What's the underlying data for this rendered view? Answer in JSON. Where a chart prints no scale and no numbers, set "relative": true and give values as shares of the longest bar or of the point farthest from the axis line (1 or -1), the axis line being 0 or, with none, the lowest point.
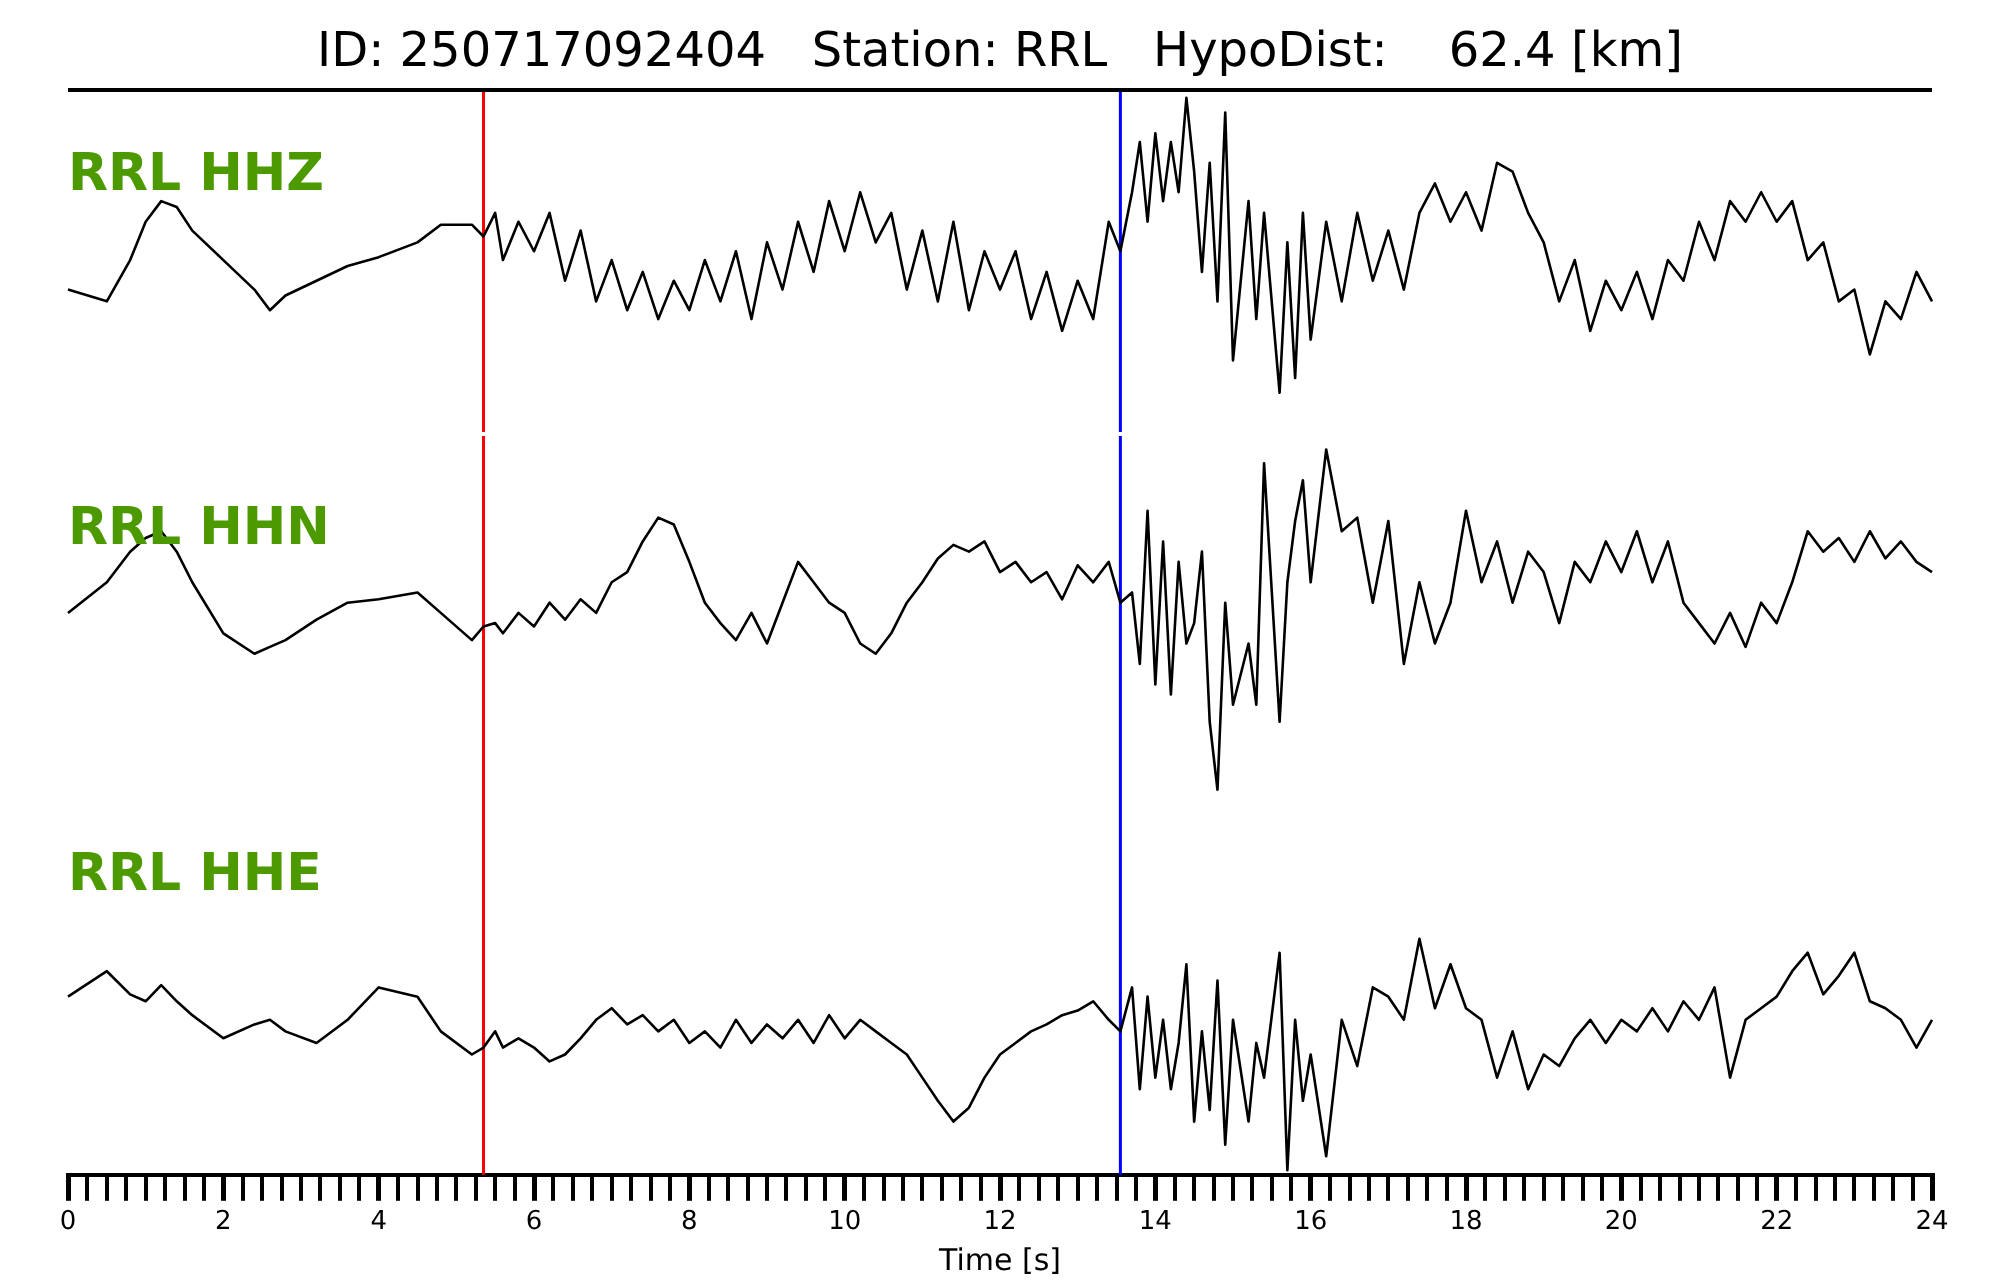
{
  "chart_data": [
    {
      "type": "line",
      "title": "ID: 250717092404   Station: RRL   HypoDist:    62.4 [km]",
      "relative": true,
      "grid": false,
      "tick_labels": false,
      "marker": "none",
      "line_style": "solid",
      "xlim": [
        0,
        24
      ],
      "x": [
        0,
        0.5,
        0.8,
        1.0,
        1.2,
        1.4,
        1.6,
        2.0,
        2.4,
        2.6,
        2.8,
        3.2,
        3.6,
        4.0,
        4.5,
        4.8,
        5.2,
        5.35,
        5.5,
        5.6,
        5.8,
        6.0,
        6.2,
        6.4,
        6.6,
        6.8,
        7.0,
        7.2,
        7.4,
        7.6,
        7.8,
        8.0,
        8.2,
        8.4,
        8.6,
        8.8,
        9.0,
        9.2,
        9.4,
        9.6,
        9.8,
        10.0,
        10.2,
        10.4,
        10.6,
        10.8,
        11.0,
        11.2,
        11.4,
        11.6,
        11.8,
        12.0,
        12.2,
        12.4,
        12.6,
        12.8,
        13.0,
        13.2,
        13.4,
        13.55,
        13.7,
        13.8,
        13.9,
        14.0,
        14.1,
        14.2,
        14.3,
        14.4,
        14.5,
        14.6,
        14.7,
        14.8,
        14.9,
        15.0,
        15.2,
        15.3,
        15.4,
        15.6,
        15.7,
        15.8,
        15.9,
        16.0,
        16.2,
        16.4,
        16.6,
        16.8,
        17.0,
        17.2,
        17.4,
        17.6,
        17.8,
        18.0,
        18.2,
        18.4,
        18.6,
        18.8,
        19.0,
        19.2,
        19.4,
        19.6,
        19.8,
        20.0,
        20.2,
        20.4,
        20.6,
        20.8,
        21.0,
        21.2,
        21.4,
        21.6,
        21.8,
        22.0,
        22.2,
        22.4,
        22.6,
        22.8,
        23.0,
        23.2,
        23.4,
        23.6,
        23.8,
        24.0
      ],
      "series": [
        {
          "name": "RRL HHZ",
          "color": "#000000",
          "values": [
            0.35,
            0.31,
            0.45,
            0.58,
            0.65,
            0.63,
            0.55,
            0.45,
            0.35,
            0.28,
            0.33,
            0.38,
            0.43,
            0.46,
            0.51,
            0.57,
            0.57,
            0.53,
            0.61,
            0.45,
            0.58,
            0.48,
            0.61,
            0.38,
            0.55,
            0.31,
            0.45,
            0.28,
            0.41,
            0.25,
            0.38,
            0.28,
            0.45,
            0.31,
            0.48,
            0.25,
            0.51,
            0.35,
            0.58,
            0.41,
            0.65,
            0.48,
            0.68,
            0.51,
            0.61,
            0.35,
            0.55,
            0.31,
            0.58,
            0.28,
            0.48,
            0.35,
            0.48,
            0.25,
            0.41,
            0.21,
            0.38,
            0.25,
            0.58,
            0.48,
            0.68,
            0.85,
            0.58,
            0.88,
            0.65,
            0.85,
            0.68,
            1,
            0.75,
            0.41,
            0.78,
            0.31,
            0.95,
            0.11,
            0.65,
            0.25,
            0.61,
            0,
            0.51,
            0.05,
            0.61,
            0.18,
            0.58,
            0.31,
            0.61,
            0.38,
            0.55,
            0.35,
            0.61,
            0.71,
            0.58,
            0.68,
            0.55,
            0.78,
            0.75,
            0.61,
            0.51,
            0.31,
            0.45,
            0.21,
            0.38,
            0.28,
            0.41,
            0.25,
            0.45,
            0.38,
            0.58,
            0.45,
            0.65,
            0.58,
            0.68,
            0.58,
            0.65,
            0.45,
            0.51,
            0.31,
            0.35,
            0.13,
            0.31,
            0.25,
            0.41,
            0.31
          ]
        }
      ],
      "ref_lines": [
        {
          "axis": "x",
          "value": 5.35,
          "color": "#ff0000"
        },
        {
          "axis": "x",
          "value": 13.55,
          "color": "#0000ff"
        }
      ]
    },
    {
      "type": "line",
      "relative": true,
      "grid": false,
      "tick_labels": false,
      "marker": "none",
      "line_style": "solid",
      "xlim": [
        0,
        24
      ],
      "x": [
        0,
        0.5,
        0.8,
        1.0,
        1.2,
        1.4,
        1.6,
        2.0,
        2.4,
        2.6,
        2.8,
        3.2,
        3.6,
        4.0,
        4.5,
        4.8,
        5.2,
        5.35,
        5.5,
        5.6,
        5.8,
        6.0,
        6.2,
        6.4,
        6.6,
        6.8,
        7.0,
        7.2,
        7.4,
        7.6,
        7.8,
        8.0,
        8.2,
        8.4,
        8.6,
        8.8,
        9.0,
        9.2,
        9.4,
        9.6,
        9.8,
        10.0,
        10.2,
        10.4,
        10.6,
        10.8,
        11.0,
        11.2,
        11.4,
        11.6,
        11.8,
        12.0,
        12.2,
        12.4,
        12.6,
        12.8,
        13.0,
        13.2,
        13.4,
        13.55,
        13.7,
        13.8,
        13.9,
        14.0,
        14.1,
        14.2,
        14.3,
        14.4,
        14.5,
        14.6,
        14.7,
        14.8,
        14.9,
        15.0,
        15.2,
        15.3,
        15.4,
        15.6,
        15.7,
        15.8,
        15.9,
        16.0,
        16.2,
        16.4,
        16.6,
        16.8,
        17.0,
        17.2,
        17.4,
        17.6,
        17.8,
        18.0,
        18.2,
        18.4,
        18.6,
        18.8,
        19.0,
        19.2,
        19.4,
        19.6,
        19.8,
        20.0,
        20.2,
        20.4,
        20.6,
        20.8,
        21.0,
        21.2,
        21.4,
        21.6,
        21.8,
        22.0,
        22.2,
        22.4,
        22.6,
        22.8,
        23.0,
        23.2,
        23.4,
        23.6,
        23.8,
        24.0
      ],
      "series": [
        {
          "name": "RRL HHN",
          "color": "#000000",
          "values": [
            0.52,
            0.61,
            0.7,
            0.74,
            0.76,
            0.7,
            0.61,
            0.46,
            0.4,
            0.42,
            0.44,
            0.5,
            0.55,
            0.56,
            0.58,
            0.52,
            0.44,
            0.48,
            0.49,
            0.46,
            0.52,
            0.48,
            0.55,
            0.5,
            0.56,
            0.52,
            0.61,
            0.64,
            0.73,
            0.8,
            0.78,
            0.67,
            0.55,
            0.49,
            0.44,
            0.52,
            0.43,
            0.55,
            0.67,
            0.61,
            0.55,
            0.52,
            0.43,
            0.4,
            0.46,
            0.55,
            0.61,
            0.68,
            0.72,
            0.7,
            0.73,
            0.64,
            0.67,
            0.61,
            0.64,
            0.56,
            0.66,
            0.61,
            0.67,
            0.55,
            0.58,
            0.37,
            0.82,
            0.31,
            0.73,
            0.28,
            0.67,
            0.43,
            0.49,
            0.7,
            0.2,
            0,
            0.55,
            0.25,
            0.43,
            0.25,
            0.96,
            0.2,
            0.61,
            0.79,
            0.91,
            0.61,
            1,
            0.76,
            0.8,
            0.55,
            0.79,
            0.37,
            0.61,
            0.43,
            0.55,
            0.82,
            0.61,
            0.73,
            0.55,
            0.7,
            0.64,
            0.49,
            0.67,
            0.61,
            0.73,
            0.64,
            0.76,
            0.61,
            0.73,
            0.55,
            0.49,
            0.43,
            0.52,
            0.42,
            0.55,
            0.49,
            0.61,
            0.76,
            0.7,
            0.74,
            0.67,
            0.76,
            0.68,
            0.73,
            0.67,
            0.64
          ]
        }
      ],
      "ref_lines": [
        {
          "axis": "x",
          "value": 5.35,
          "color": "#ff0000"
        },
        {
          "axis": "x",
          "value": 13.55,
          "color": "#0000ff"
        }
      ]
    },
    {
      "type": "line",
      "relative": true,
      "grid": false,
      "tick_labels": "x",
      "marker": "none",
      "line_style": "solid",
      "xlabel": "Time [s]",
      "xlim": [
        0,
        24
      ],
      "xticks": [
        0,
        {
          "value": 0.25,
          "label": null
        },
        {
          "value": 0.5,
          "label": null
        },
        {
          "value": 0.75,
          "label": null
        },
        {
          "value": 1,
          "label": null
        },
        {
          "value": 1.25,
          "label": null
        },
        {
          "value": 1.5,
          "label": null
        },
        {
          "value": 1.75,
          "label": null
        },
        2,
        {
          "value": 2.25,
          "label": null
        },
        {
          "value": 2.5,
          "label": null
        },
        {
          "value": 2.75,
          "label": null
        },
        {
          "value": 3,
          "label": null
        },
        {
          "value": 3.25,
          "label": null
        },
        {
          "value": 3.5,
          "label": null
        },
        {
          "value": 3.75,
          "label": null
        },
        4,
        {
          "value": 4.25,
          "label": null
        },
        {
          "value": 4.5,
          "label": null
        },
        {
          "value": 4.75,
          "label": null
        },
        {
          "value": 5,
          "label": null
        },
        {
          "value": 5.25,
          "label": null
        },
        {
          "value": 5.5,
          "label": null
        },
        {
          "value": 5.75,
          "label": null
        },
        6,
        {
          "value": 6.25,
          "label": null
        },
        {
          "value": 6.5,
          "label": null
        },
        {
          "value": 6.75,
          "label": null
        },
        {
          "value": 7,
          "label": null
        },
        {
          "value": 7.25,
          "label": null
        },
        {
          "value": 7.5,
          "label": null
        },
        {
          "value": 7.75,
          "label": null
        },
        8,
        {
          "value": 8.25,
          "label": null
        },
        {
          "value": 8.5,
          "label": null
        },
        {
          "value": 8.75,
          "label": null
        },
        {
          "value": 9,
          "label": null
        },
        {
          "value": 9.25,
          "label": null
        },
        {
          "value": 9.5,
          "label": null
        },
        {
          "value": 9.75,
          "label": null
        },
        10,
        {
          "value": 10.25,
          "label": null
        },
        {
          "value": 10.5,
          "label": null
        },
        {
          "value": 10.75,
          "label": null
        },
        {
          "value": 11,
          "label": null
        },
        {
          "value": 11.25,
          "label": null
        },
        {
          "value": 11.5,
          "label": null
        },
        {
          "value": 11.75,
          "label": null
        },
        12,
        {
          "value": 12.25,
          "label": null
        },
        {
          "value": 12.5,
          "label": null
        },
        {
          "value": 12.75,
          "label": null
        },
        {
          "value": 13,
          "label": null
        },
        {
          "value": 13.25,
          "label": null
        },
        {
          "value": 13.5,
          "label": null
        },
        {
          "value": 13.75,
          "label": null
        },
        14,
        {
          "value": 14.25,
          "label": null
        },
        {
          "value": 14.5,
          "label": null
        },
        {
          "value": 14.75,
          "label": null
        },
        {
          "value": 15,
          "label": null
        },
        {
          "value": 15.25,
          "label": null
        },
        {
          "value": 15.5,
          "label": null
        },
        {
          "value": 15.75,
          "label": null
        },
        16,
        {
          "value": 16.25,
          "label": null
        },
        {
          "value": 16.5,
          "label": null
        },
        {
          "value": 16.75,
          "label": null
        },
        {
          "value": 17,
          "label": null
        },
        {
          "value": 17.25,
          "label": null
        },
        {
          "value": 17.5,
          "label": null
        },
        {
          "value": 17.75,
          "label": null
        },
        18,
        {
          "value": 18.25,
          "label": null
        },
        {
          "value": 18.5,
          "label": null
        },
        {
          "value": 18.75,
          "label": null
        },
        {
          "value": 19,
          "label": null
        },
        {
          "value": 19.25,
          "label": null
        },
        {
          "value": 19.5,
          "label": null
        },
        {
          "value": 19.75,
          "label": null
        },
        20,
        {
          "value": 20.25,
          "label": null
        },
        {
          "value": 20.5,
          "label": null
        },
        {
          "value": 20.75,
          "label": null
        },
        {
          "value": 21,
          "label": null
        },
        {
          "value": 21.25,
          "label": null
        },
        {
          "value": 21.5,
          "label": null
        },
        {
          "value": 21.75,
          "label": null
        },
        22,
        {
          "value": 22.25,
          "label": null
        },
        {
          "value": 22.5,
          "label": null
        },
        {
          "value": 22.75,
          "label": null
        },
        {
          "value": 23,
          "label": null
        },
        {
          "value": 23.25,
          "label": null
        },
        {
          "value": 23.5,
          "label": null
        },
        {
          "value": 23.75,
          "label": null
        },
        24
      ],
      "x": [
        0,
        0.5,
        0.8,
        1.0,
        1.2,
        1.4,
        1.6,
        2.0,
        2.4,
        2.6,
        2.8,
        3.2,
        3.6,
        4.0,
        4.5,
        4.8,
        5.2,
        5.35,
        5.5,
        5.6,
        5.8,
        6.0,
        6.2,
        6.4,
        6.6,
        6.8,
        7.0,
        7.2,
        7.4,
        7.6,
        7.8,
        8.0,
        8.2,
        8.4,
        8.6,
        8.8,
        9.0,
        9.2,
        9.4,
        9.6,
        9.8,
        10.0,
        10.2,
        10.4,
        10.6,
        10.8,
        11.0,
        11.2,
        11.4,
        11.6,
        11.8,
        12.0,
        12.2,
        12.4,
        12.6,
        12.8,
        13.0,
        13.2,
        13.4,
        13.55,
        13.7,
        13.8,
        13.9,
        14.0,
        14.1,
        14.2,
        14.3,
        14.4,
        14.5,
        14.6,
        14.7,
        14.8,
        14.9,
        15.0,
        15.2,
        15.3,
        15.4,
        15.6,
        15.7,
        15.8,
        15.9,
        16.0,
        16.2,
        16.4,
        16.6,
        16.8,
        17.0,
        17.2,
        17.4,
        17.6,
        17.8,
        18.0,
        18.2,
        18.4,
        18.6,
        18.8,
        19.0,
        19.2,
        19.4,
        19.6,
        19.8,
        20.0,
        20.2,
        20.4,
        20.6,
        20.8,
        21.0,
        21.2,
        21.4,
        21.6,
        21.8,
        22.0,
        22.2,
        22.4,
        22.6,
        22.8,
        23.0,
        23.2,
        23.4,
        23.6,
        23.8,
        24.0
      ],
      "series": [
        {
          "name": "RRL HHE",
          "color": "#000000",
          "values": [
            0.75,
            0.86,
            0.76,
            0.73,
            0.8,
            0.73,
            0.67,
            0.57,
            0.63,
            0.65,
            0.6,
            0.55,
            0.65,
            0.79,
            0.75,
            0.6,
            0.5,
            0.53,
            0.6,
            0.53,
            0.57,
            0.53,
            0.47,
            0.5,
            0.57,
            0.65,
            0.7,
            0.63,
            0.67,
            0.6,
            0.65,
            0.55,
            0.6,
            0.53,
            0.65,
            0.55,
            0.63,
            0.57,
            0.65,
            0.55,
            0.67,
            0.57,
            0.65,
            0.6,
            0.55,
            0.5,
            0.4,
            0.3,
            0.21,
            0.27,
            0.4,
            0.5,
            0.55,
            0.6,
            0.63,
            0.67,
            0.69,
            0.73,
            0.65,
            0.6,
            0.79,
            0.35,
            0.75,
            0.4,
            0.65,
            0.35,
            0.55,
            0.89,
            0.21,
            0.6,
            0.26,
            0.82,
            0.11,
            0.65,
            0.21,
            0.55,
            0.4,
            0.94,
            0,
            0.65,
            0.3,
            0.5,
            0.06,
            0.65,
            0.45,
            0.79,
            0.75,
            0.65,
            1,
            0.7,
            0.89,
            0.7,
            0.65,
            0.4,
            0.6,
            0.35,
            0.5,
            0.45,
            0.57,
            0.65,
            0.55,
            0.65,
            0.6,
            0.7,
            0.6,
            0.73,
            0.65,
            0.79,
            0.4,
            0.65,
            0.7,
            0.75,
            0.86,
            0.94,
            0.76,
            0.84,
            0.94,
            0.73,
            0.7,
            0.65,
            0.53,
            0.65
          ]
        }
      ],
      "ref_lines": [
        {
          "axis": "x",
          "value": 5.35,
          "color": "#ff0000"
        },
        {
          "axis": "x",
          "value": 13.55,
          "color": "#0000ff"
        }
      ]
    }
  ]
}
